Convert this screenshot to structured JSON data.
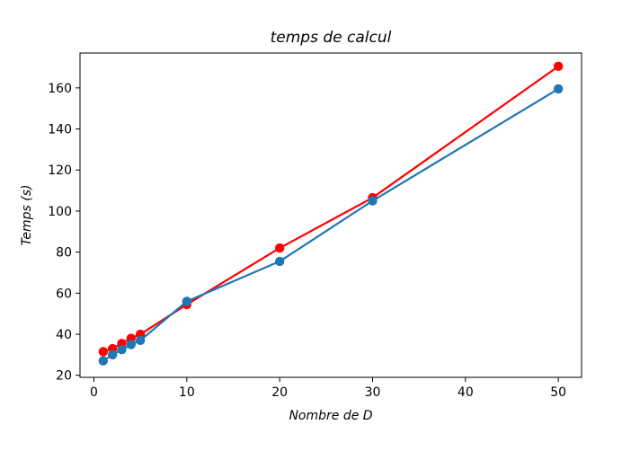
{
  "chart_data": {
    "type": "line",
    "title": "temps de calcul",
    "xlabel": "Nombre de D",
    "ylabel": "Temps (s)",
    "xlim": [
      -1.5,
      52.5
    ],
    "ylim": [
      19,
      177
    ],
    "xticks": [
      0,
      10,
      20,
      30,
      40,
      50
    ],
    "yticks": [
      20,
      40,
      60,
      80,
      100,
      120,
      140,
      160
    ],
    "grid": false,
    "legend": "none",
    "x": [
      1,
      2,
      3,
      4,
      5,
      10,
      20,
      30,
      50
    ],
    "series": [
      {
        "color": "#ff0000",
        "values": [
          31.5,
          33.0,
          35.5,
          38.0,
          40.0,
          54.5,
          82.0,
          106.5,
          170.5
        ]
      },
      {
        "color": "#1f77b4",
        "values": [
          27.0,
          30.0,
          32.5,
          35.0,
          37.0,
          56.0,
          75.5,
          105.0,
          159.5
        ]
      }
    ]
  }
}
